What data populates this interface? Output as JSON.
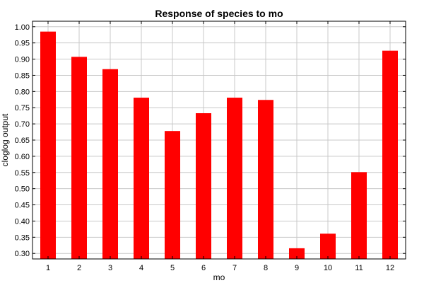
{
  "chart_data": {
    "type": "bar",
    "title": "Response of species to mo",
    "xlabel": "mo",
    "ylabel": "cloglog output",
    "categories": [
      "1",
      "2",
      "3",
      "4",
      "5",
      "6",
      "7",
      "8",
      "9",
      "10",
      "11",
      "12"
    ],
    "values": [
      0.985,
      0.907,
      0.869,
      0.781,
      0.678,
      0.733,
      0.781,
      0.774,
      0.316,
      0.361,
      0.551,
      0.926
    ],
    "ylim": [
      0.283,
      1.017
    ],
    "yticks": [
      "0.30",
      "0.35",
      "0.40",
      "0.45",
      "0.50",
      "0.55",
      "0.60",
      "0.65",
      "0.70",
      "0.75",
      "0.80",
      "0.85",
      "0.90",
      "0.95",
      "1.00"
    ],
    "grid": true,
    "bar_color": "#ff0000",
    "grid_color": "#c8c8c8"
  }
}
